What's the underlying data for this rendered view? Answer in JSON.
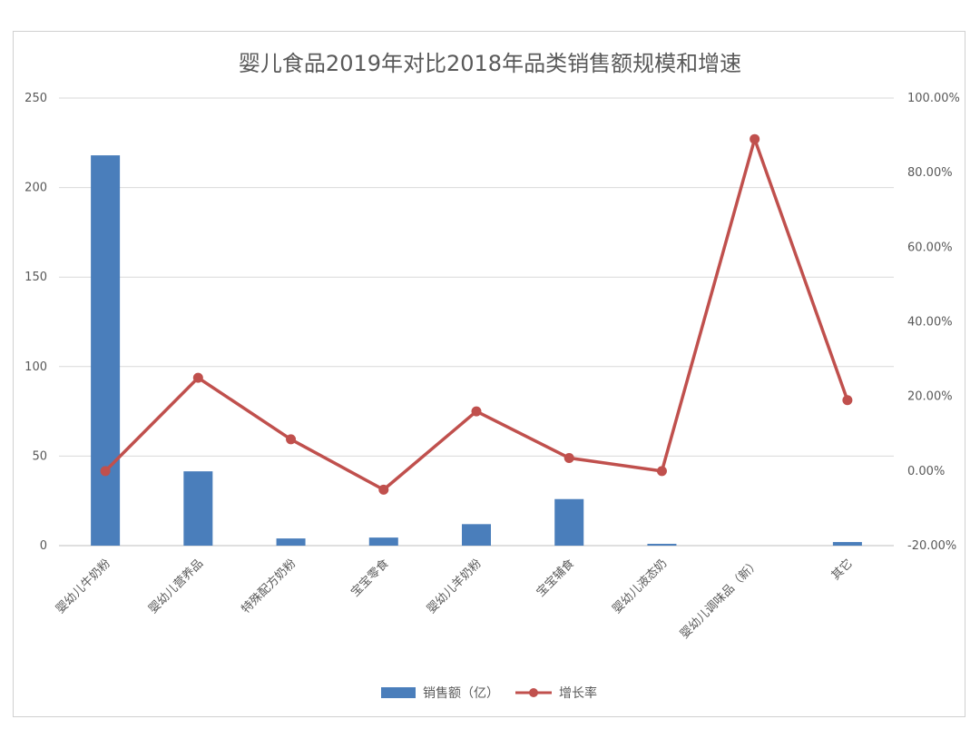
{
  "chart_data": {
    "type": "bar",
    "title": "婴儿食品2019年对比2018年品类销售额规模和增速",
    "categories": [
      "婴幼儿牛奶粉",
      "婴幼儿营养品",
      "特殊配方奶粉",
      "宝宝零食",
      "婴幼儿羊奶粉",
      "宝宝辅食",
      "婴幼儿液态奶",
      "婴幼儿调味品（新）",
      "其它"
    ],
    "left_axis": {
      "ylim": [
        0,
        250
      ],
      "ticks": [
        "0",
        "50",
        "100",
        "150",
        "200",
        "250"
      ],
      "tick_values": [
        0,
        50,
        100,
        150,
        200,
        250
      ]
    },
    "right_axis": {
      "ylim": [
        -0.2,
        1.0
      ],
      "ticks": [
        "-20.00%",
        "0.00%",
        "20.00%",
        "40.00%",
        "60.00%",
        "80.00%",
        "100.00%"
      ],
      "tick_values": [
        -0.2,
        0,
        0.2,
        0.4,
        0.6,
        0.8,
        1.0
      ]
    },
    "series": [
      {
        "name": "销售额（亿）",
        "type": "bar",
        "axis": "left",
        "color": "#4a7ebb",
        "values": [
          218,
          41.5,
          4,
          4.5,
          12,
          26,
          1,
          0,
          2
        ]
      },
      {
        "name": "增长率",
        "type": "line",
        "axis": "right",
        "color": "#c0504d",
        "values": [
          0.0,
          0.25,
          0.085,
          -0.05,
          0.16,
          0.035,
          0.0,
          0.89,
          0.19
        ]
      }
    ],
    "grid": true,
    "legend": "bottom"
  }
}
